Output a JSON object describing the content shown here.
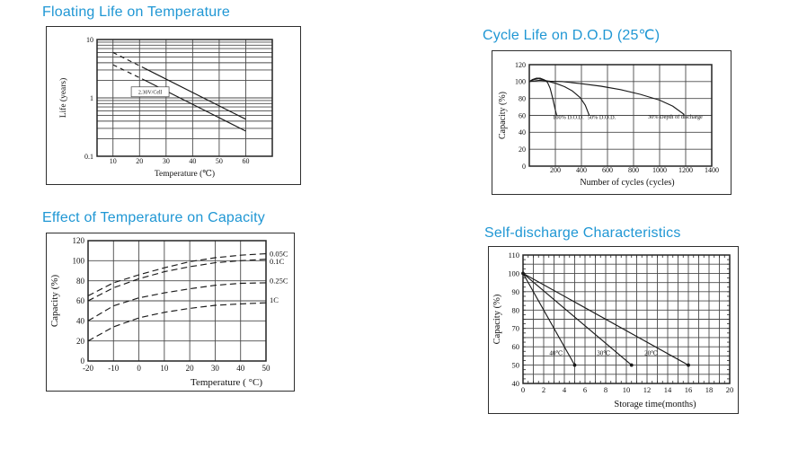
{
  "palette": {
    "accent": "#2097d4",
    "grid": "#4a4a4a",
    "line": "#1a1a1a"
  },
  "chart_data": [
    {
      "id": "floating-life",
      "type": "line",
      "title": "Floating Life on Temperature",
      "xlabel": "Temperature (℃)",
      "ylabel": "Life (years)",
      "xlim": [
        4,
        70
      ],
      "ylim": [
        0.1,
        10
      ],
      "y_scale": "log",
      "x_ticks": [
        10,
        20,
        30,
        40,
        50,
        60
      ],
      "y_ticks": [
        10,
        1,
        0.1
      ],
      "x_grid": [
        10,
        20,
        30,
        40,
        50,
        60
      ],
      "y_grid": [
        0.2,
        0.3,
        0.4,
        0.5,
        0.6,
        0.7,
        0.8,
        0.9,
        1,
        2,
        3,
        4,
        5,
        6,
        7,
        8,
        9
      ],
      "annotation": {
        "text": "2.30V/Cell",
        "x": 24,
        "y": 1.27
      },
      "series": [
        {
          "name": "float-life-upper",
          "dash_pattern": "5 4",
          "segments": [
            {
              "dash": true,
              "points": [
                [
                  10,
                  6.0
                ],
                [
                  22,
                  3.2
                ]
              ]
            },
            {
              "dash": false,
              "points": [
                [
                  22,
                  3.2
                ],
                [
                  60,
                  0.43
                ]
              ]
            }
          ]
        },
        {
          "name": "float-life-lower",
          "dash_pattern": "5 4",
          "segments": [
            {
              "dash": true,
              "points": [
                [
                  10,
                  3.7
                ],
                [
                  22,
                  2.0
                ]
              ]
            },
            {
              "dash": false,
              "points": [
                [
                  22,
                  2.0
                ],
                [
                  60,
                  0.27
                ]
              ]
            }
          ]
        }
      ]
    },
    {
      "id": "cycle-life",
      "type": "line",
      "title": "Cycle Life on D.O.D (25℃)",
      "xlabel": "Number of cycles (cycles)",
      "ylabel": "Capacity  (%)",
      "xlim": [
        0,
        1400
      ],
      "ylim": [
        0,
        120
      ],
      "x_ticks": [
        200,
        400,
        600,
        800,
        1000,
        1200,
        1400
      ],
      "y_ticks": [
        0,
        20,
        40,
        60,
        80,
        100,
        120
      ],
      "x_grid": [
        200,
        400,
        600,
        800,
        1000,
        1200
      ],
      "y_grid": [
        20,
        40,
        60,
        80,
        100
      ],
      "labels": [
        {
          "text": "100% D.O.D.",
          "x": 300,
          "y": 56
        },
        {
          "text": "50% D.O.D.",
          "x": 555,
          "y": 56
        },
        {
          "text": "30% Depth of  discharge",
          "x": 1120,
          "y": 56.5
        }
      ],
      "series": [
        {
          "name": "dod-100",
          "points": [
            [
              0,
              100
            ],
            [
              25,
              102.5
            ],
            [
              55,
              104
            ],
            [
              85,
              104
            ],
            [
              115,
              102
            ],
            [
              140,
              99
            ],
            [
              160,
              92
            ],
            [
              180,
              80
            ],
            [
              197,
              68
            ],
            [
              210,
              60
            ]
          ]
        },
        {
          "name": "dod-50",
          "points": [
            [
              0,
              100
            ],
            [
              35,
              102.5
            ],
            [
              70,
              103.5
            ],
            [
              110,
              102
            ],
            [
              150,
              100
            ],
            [
              210,
              97.5
            ],
            [
              270,
              94
            ],
            [
              330,
              89
            ],
            [
              390,
              81
            ],
            [
              430,
              72
            ],
            [
              460,
              60
            ]
          ]
        },
        {
          "name": "dod-30",
          "points": [
            [
              0,
              100
            ],
            [
              80,
              101.5
            ],
            [
              160,
              100.5
            ],
            [
              250,
              100
            ],
            [
              400,
              97.5
            ],
            [
              550,
              94.5
            ],
            [
              700,
              90.5
            ],
            [
              850,
              85
            ],
            [
              1000,
              78
            ],
            [
              1100,
              71
            ],
            [
              1190,
              61
            ]
          ]
        }
      ]
    },
    {
      "id": "temperature-capacity",
      "type": "line",
      "title": "Effect of Temperature on Capacity",
      "xlabel": "Temperature ( °C)",
      "ylabel": "Capacity  (%)",
      "xlim": [
        -20,
        50
      ],
      "ylim": [
        0,
        120
      ],
      "x_ticks": [
        -20,
        -10,
        0,
        10,
        20,
        30,
        40,
        50
      ],
      "y_ticks": [
        0,
        20,
        40,
        60,
        80,
        100,
        120
      ],
      "x_grid": [
        -10,
        0,
        10,
        20,
        30,
        40
      ],
      "y_grid": [
        20,
        40,
        60,
        80,
        100
      ],
      "right_labels": [
        {
          "text": "0.05C",
          "y": 107
        },
        {
          "text": "0.1C",
          "y": 99.5
        },
        {
          "text": "0.25C",
          "y": 80
        },
        {
          "text": "1C",
          "y": 61
        }
      ],
      "series": [
        {
          "name": "rate-0.05C",
          "dash": true,
          "dash_pattern": "7 4",
          "points": [
            [
              -20,
              65
            ],
            [
              -10,
              78
            ],
            [
              0,
              86
            ],
            [
              10,
              93
            ],
            [
              20,
              99
            ],
            [
              30,
              103
            ],
            [
              40,
              105.5
            ],
            [
              50,
              107
            ]
          ]
        },
        {
          "name": "rate-0.1C",
          "dash": true,
          "dash_pattern": "7 4",
          "points": [
            [
              -20,
              60
            ],
            [
              -10,
              73
            ],
            [
              0,
              82
            ],
            [
              10,
              89
            ],
            [
              20,
              94
            ],
            [
              30,
              98
            ],
            [
              40,
              100
            ],
            [
              50,
              101.5
            ]
          ]
        },
        {
          "name": "rate-0.25C",
          "dash": true,
          "dash_pattern": "7 4",
          "points": [
            [
              -20,
              40
            ],
            [
              -10,
              55
            ],
            [
              0,
              63
            ],
            [
              10,
              68
            ],
            [
              20,
              72
            ],
            [
              30,
              75.5
            ],
            [
              40,
              77.5
            ],
            [
              50,
              78
            ]
          ]
        },
        {
          "name": "rate-1C",
          "dash": true,
          "dash_pattern": "7 4",
          "points": [
            [
              -20,
              20
            ],
            [
              -10,
              34
            ],
            [
              0,
              43
            ],
            [
              10,
              48.5
            ],
            [
              20,
              52.5
            ],
            [
              30,
              55.5
            ],
            [
              40,
              57
            ],
            [
              50,
              58
            ]
          ]
        }
      ]
    },
    {
      "id": "self-discharge",
      "type": "line",
      "title": "Self-discharge Characteristics",
      "xlabel": "Storage time(months)",
      "ylabel": "Capacity (%)",
      "xlim": [
        0,
        20
      ],
      "ylim": [
        40,
        110
      ],
      "x_ticks": [
        0,
        2,
        4,
        6,
        8,
        10,
        12,
        14,
        16,
        18,
        20
      ],
      "y_ticks": [
        40,
        50,
        60,
        70,
        80,
        90,
        100,
        110
      ],
      "x_grid": [
        1,
        2,
        3,
        4,
        5,
        6,
        7,
        8,
        9,
        10,
        11,
        12,
        13,
        14,
        15,
        16,
        17,
        18,
        19
      ],
      "y_grid": [
        45,
        50,
        55,
        60,
        65,
        70,
        75,
        80,
        85,
        90,
        95,
        100,
        105
      ],
      "x_minor_step": 0.5,
      "y_minor_step": 2.5,
      "labels": [
        {
          "text": "40℃",
          "x": 3.2,
          "y": 55.5
        },
        {
          "text": "30℃",
          "x": 7.8,
          "y": 55.5
        },
        {
          "text": "20℃",
          "x": 12.4,
          "y": 55.5
        }
      ],
      "series": [
        {
          "name": "temp-40C",
          "points": [
            [
              0,
              100
            ],
            [
              5,
              50
            ]
          ],
          "markers": [
            [
              0,
              100
            ],
            [
              5,
              50
            ]
          ]
        },
        {
          "name": "temp-30C",
          "points": [
            [
              0,
              100
            ],
            [
              10.5,
              50
            ]
          ],
          "markers": [
            [
              10.5,
              50
            ]
          ]
        },
        {
          "name": "temp-20C",
          "points": [
            [
              0,
              100
            ],
            [
              16,
              50
            ]
          ],
          "markers": [
            [
              16,
              50
            ]
          ]
        }
      ]
    }
  ]
}
